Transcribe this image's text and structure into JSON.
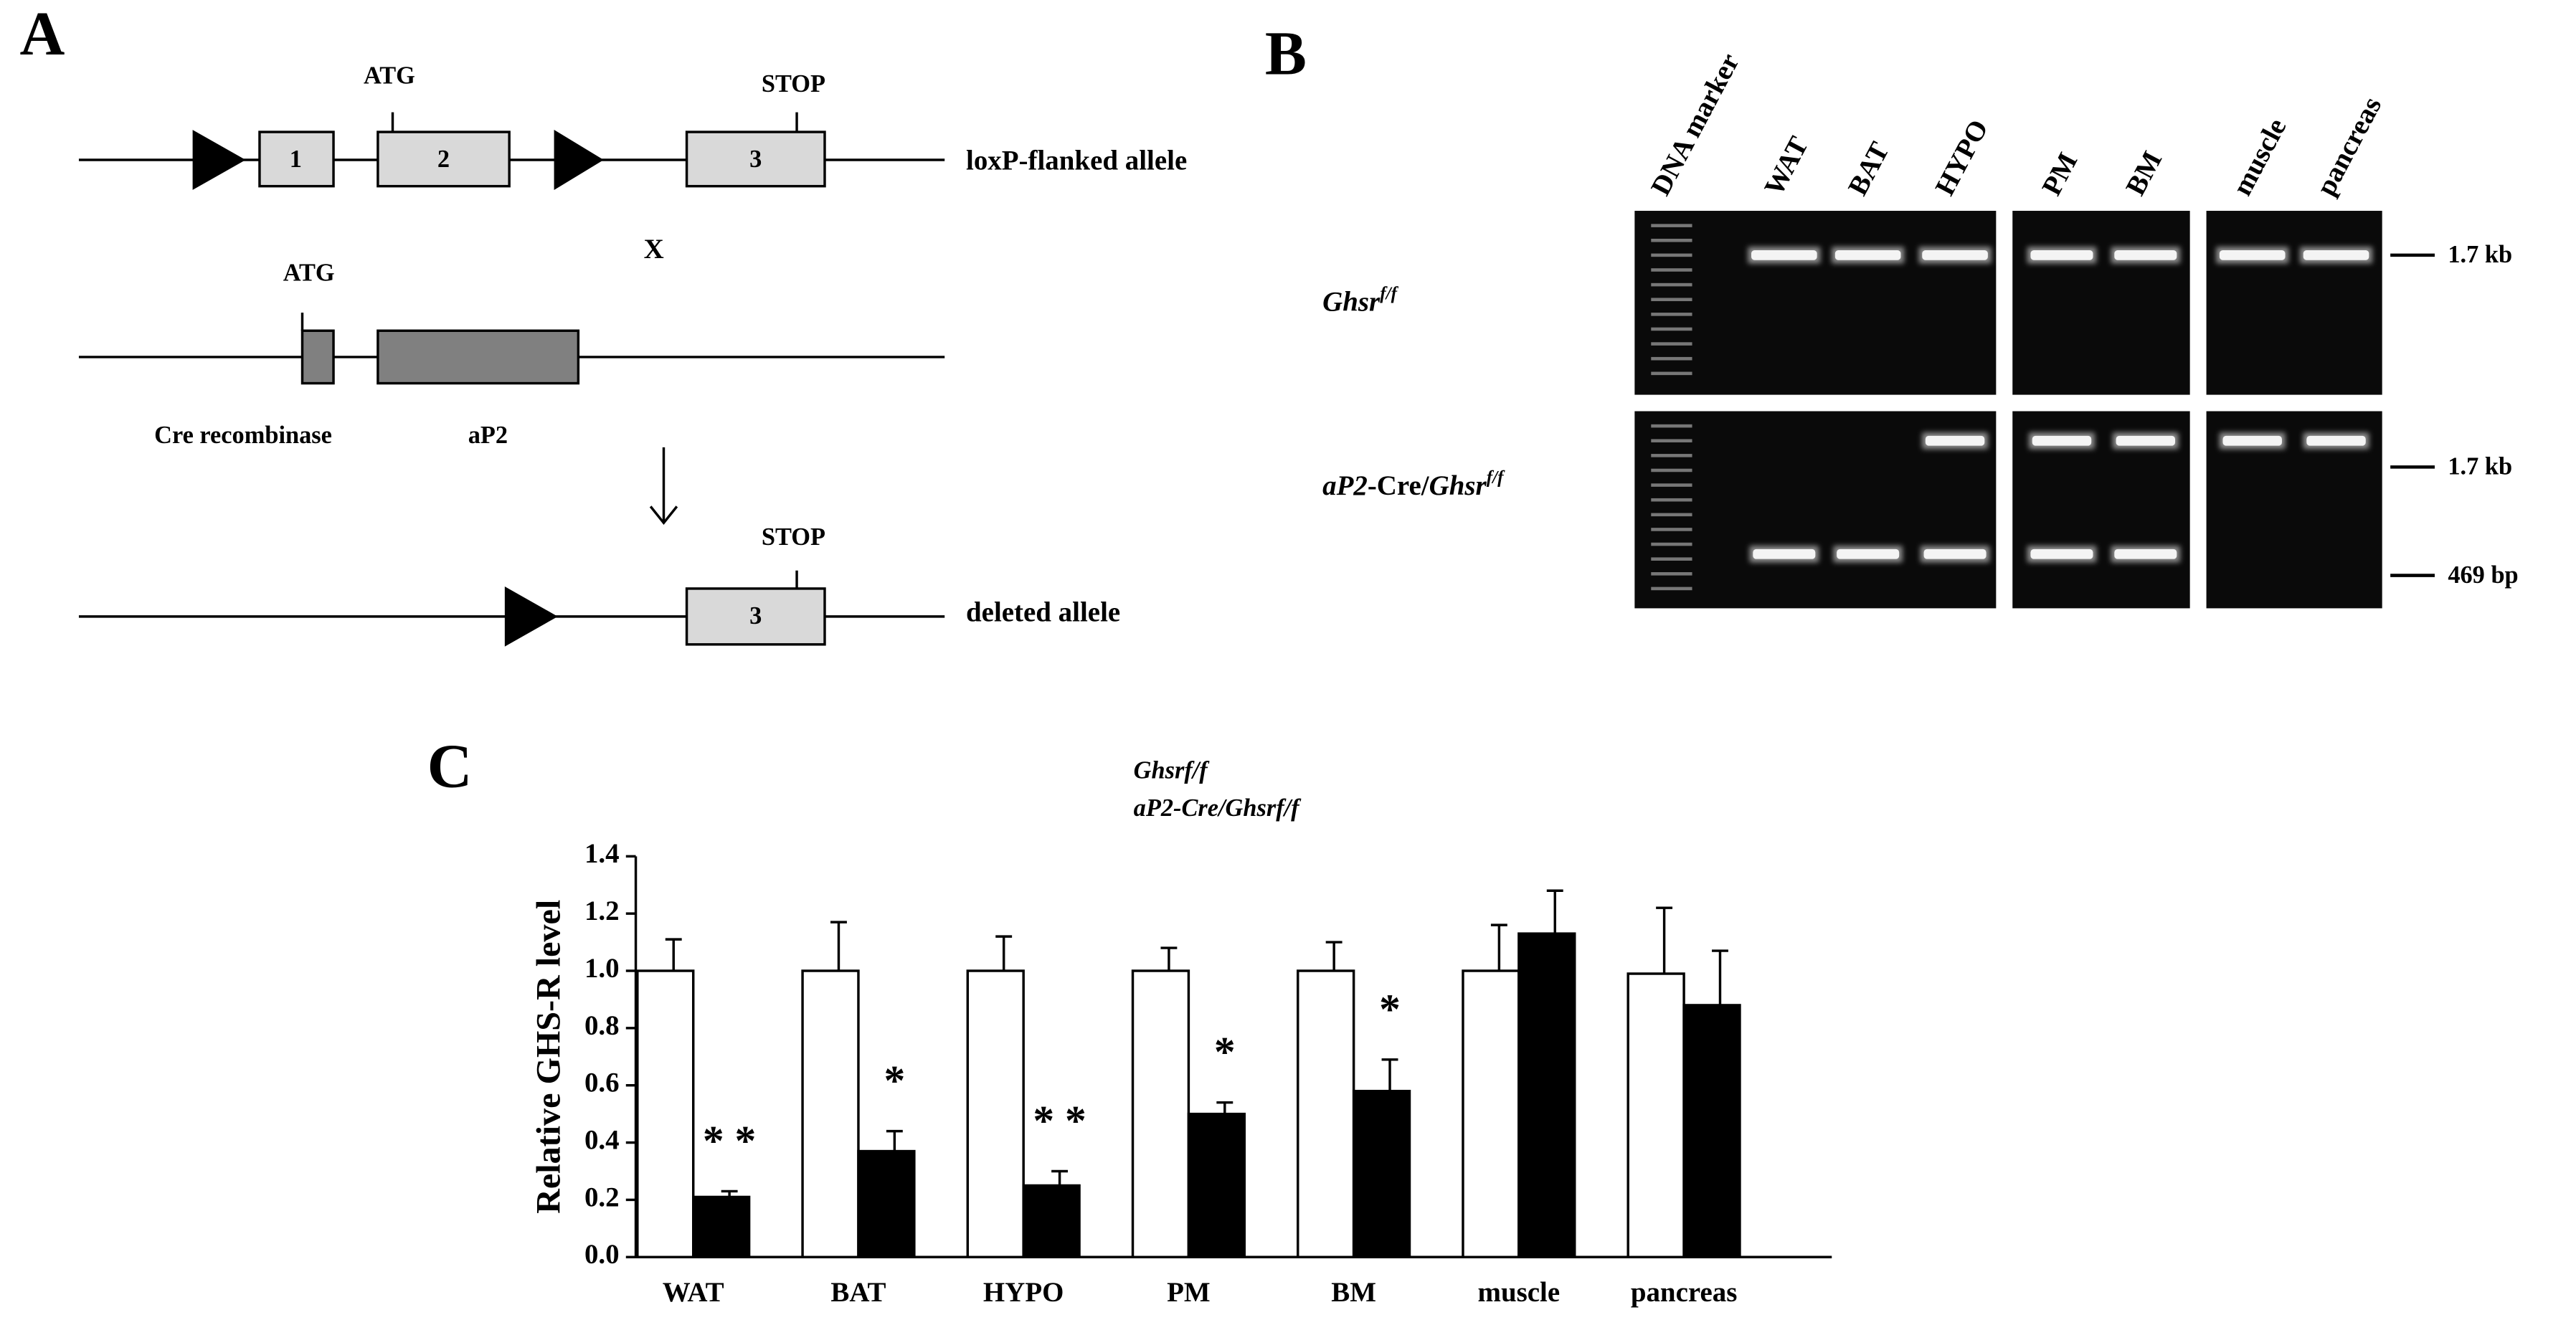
{
  "panel_a": {
    "label": "A",
    "atg_1": "ATG",
    "stop_1": "STOP",
    "exons": [
      "1",
      "2",
      "3"
    ],
    "allele_1": "loxP-flanked allele",
    "cross": "X",
    "atg_2": "ATG",
    "cre_label": "Cre recombinase",
    "ap2_label": "aP2",
    "stop_2": "STOP",
    "exon_3": "3",
    "allele_2": "deleted allele"
  },
  "panel_b": {
    "label": "B",
    "lanes": [
      "DNA marker",
      "WAT",
      "BAT",
      "HYPO",
      "PM",
      "BM",
      "muscle",
      "pancreas"
    ],
    "row_labels": [
      [
        "Ghsr",
        "f/f"
      ],
      [
        "aP2",
        "-Cre/",
        "Ghsr",
        "f/f"
      ]
    ],
    "sizes": [
      "1.7 kb",
      "1.7 kb",
      "469 bp"
    ]
  },
  "chart_data": {
    "type": "bar",
    "panel_label": "C",
    "y_label": "Relative GHS-R level",
    "categories": [
      "WAT",
      "BAT",
      "HYPO",
      "PM",
      "BM",
      "muscle",
      "pancreas"
    ],
    "series": [
      {
        "name": "Ghsrf/f",
        "color": "#ffffff",
        "values": [
          1.0,
          1.0,
          1.0,
          1.0,
          1.0,
          1.0,
          0.99
        ],
        "errors": [
          0.11,
          0.17,
          0.12,
          0.08,
          0.1,
          0.16,
          0.23
        ]
      },
      {
        "name": "aP2-Cre/Ghsrf/f",
        "color": "#000000",
        "values": [
          0.21,
          0.37,
          0.25,
          0.5,
          0.58,
          1.13,
          0.88
        ],
        "errors": [
          0.02,
          0.07,
          0.05,
          0.04,
          0.11,
          0.15,
          0.19
        ]
      }
    ],
    "annotations": [
      "* *",
      "*",
      "* *",
      "*",
      "*",
      null,
      null
    ],
    "ylim": [
      0,
      1.4
    ],
    "yticks": [
      {
        "value": 0,
        "label": "0.0"
      },
      0.2,
      0.4,
      0.6,
      0.8,
      {
        "value": 1,
        "label": "1.0"
      },
      1.2,
      1.4
    ]
  }
}
